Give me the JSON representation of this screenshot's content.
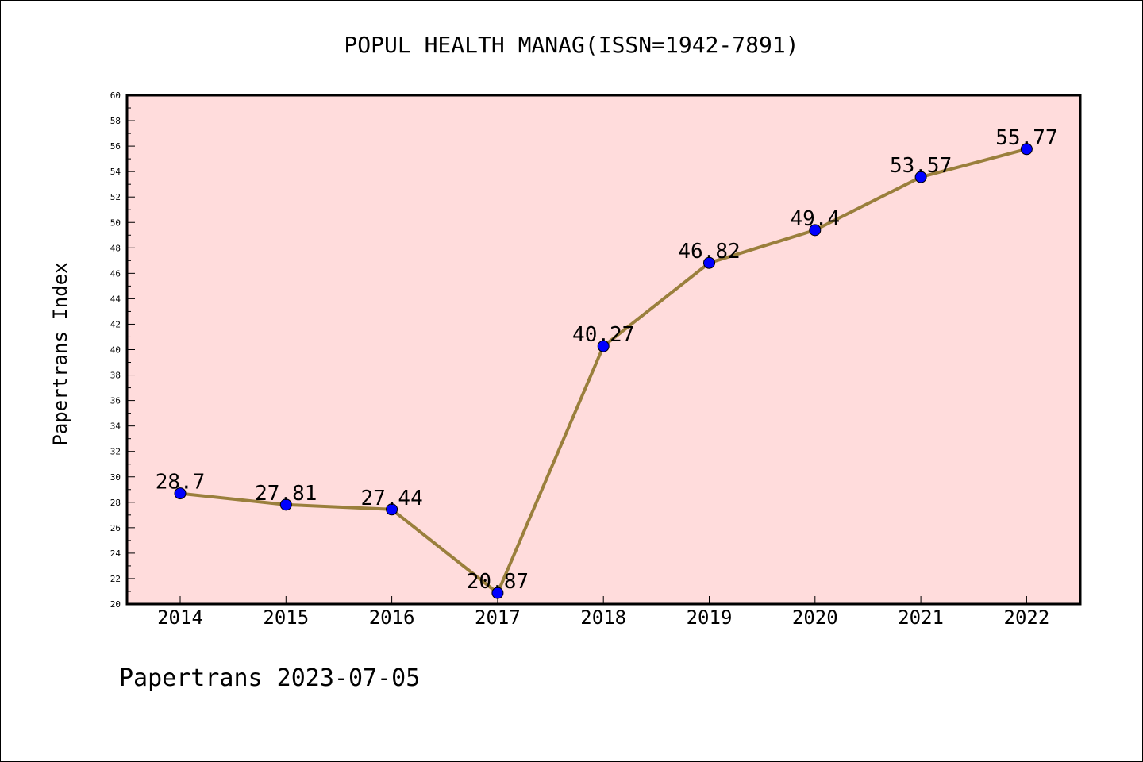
{
  "chart_data": {
    "type": "line",
    "title": "POPUL HEALTH MANAG(ISSN=1942-7891)",
    "xlabel": "",
    "ylabel": "Papertrans Index",
    "categories": [
      "2014",
      "2015",
      "2016",
      "2017",
      "2018",
      "2019",
      "2020",
      "2021",
      "2022"
    ],
    "series": [
      {
        "values": [
          28.7,
          27.81,
          27.44,
          20.87,
          40.27,
          46.82,
          49.4,
          53.57,
          55.77
        ],
        "labels": [
          "28.7",
          "27.81",
          "27.44",
          "20.87",
          "40.27",
          "46.82",
          "49.4",
          "53.57",
          "55.77"
        ]
      }
    ],
    "ylim": [
      20,
      60
    ],
    "yticks": [
      "20",
      "22",
      "24",
      "26",
      "28",
      "30",
      "32",
      "34",
      "36",
      "38",
      "40",
      "42",
      "44",
      "46",
      "48",
      "50",
      "52",
      "54",
      "56",
      "58",
      "60"
    ],
    "grid": false,
    "colors": {
      "plot_background": "#ffdcdc",
      "line": "#9a7f3c",
      "marker": "#0000ff"
    }
  },
  "footer": "Papertrans 2023-07-05"
}
